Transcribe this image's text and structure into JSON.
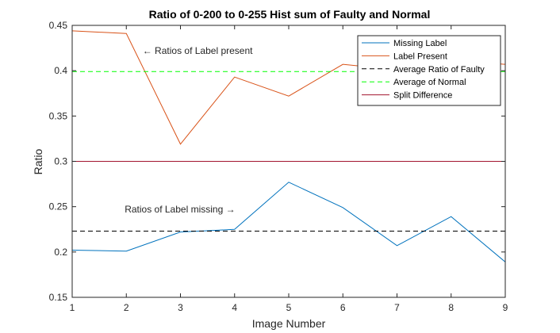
{
  "chart_data": {
    "type": "line",
    "title": "Ratio of 0-200 to 0-255 Hist sum of Faulty and Normal",
    "xlabel": "Image Number",
    "ylabel": "Ratio",
    "xlim": [
      1,
      9
    ],
    "ylim": [
      0.15,
      0.45
    ],
    "x_ticks": [
      "1",
      "2",
      "3",
      "4",
      "5",
      "6",
      "7",
      "8",
      "9"
    ],
    "y_ticks": [
      "0.15",
      "0.2",
      "0.25",
      "0.3",
      "0.35",
      "0.4",
      "0.45"
    ],
    "x": [
      1,
      2,
      3,
      4,
      5,
      6,
      7,
      8,
      9
    ],
    "legend_position": "top-right",
    "grid": false,
    "series": [
      {
        "name": "Missing Label",
        "color": "#0072BD",
        "dash": "solid",
        "values": [
          0.202,
          0.201,
          0.222,
          0.225,
          0.277,
          0.249,
          0.207,
          0.239,
          0.189
        ]
      },
      {
        "name": "Label Present",
        "color": "#D95319",
        "dash": "solid",
        "values": [
          0.444,
          0.441,
          0.319,
          0.393,
          0.372,
          0.407,
          0.401,
          0.412,
          0.407
        ]
      },
      {
        "name": "Average Ratio of Faulty",
        "color": "#000000",
        "dash": "dashed",
        "values": [
          0.223,
          0.223,
          0.223,
          0.223,
          0.223,
          0.223,
          0.223,
          0.223,
          0.223
        ]
      },
      {
        "name": "Average of Normal",
        "color": "#00FF00",
        "dash": "dashed",
        "values": [
          0.399,
          0.399,
          0.399,
          0.399,
          0.399,
          0.399,
          0.399,
          0.399,
          0.399
        ]
      },
      {
        "name": "Split Difference",
        "color": "#A2142F",
        "dash": "solid",
        "values": [
          0.3,
          0.3,
          0.3,
          0.3,
          0.3,
          0.3,
          0.3,
          0.3,
          0.3
        ]
      }
    ],
    "annotations": [
      {
        "text": "← Ratios of Label present",
        "x": 2.3,
        "y": 0.422
      },
      {
        "text": "Ratios of Label missing →",
        "x": 1.97,
        "y": 0.247
      }
    ]
  }
}
